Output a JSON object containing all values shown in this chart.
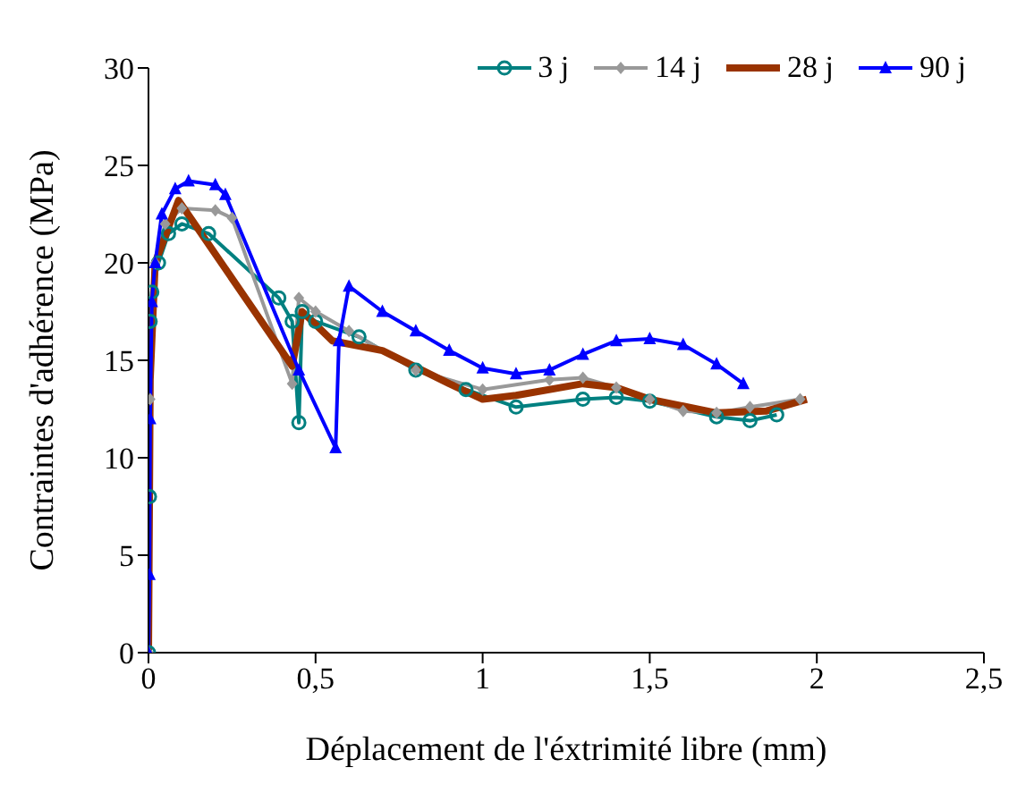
{
  "chart_data": {
    "type": "line",
    "xlabel": "Déplacement de l'éxtrimité libre (mm)",
    "ylabel": "Contraintes d'adhérence (MPa)",
    "xlim": [
      0,
      2.5
    ],
    "ylim": [
      0,
      30
    ],
    "xticks": [
      0,
      {
        "value": 0.5,
        "label": "0,5"
      },
      1,
      {
        "value": 1.5,
        "label": "1,5"
      },
      2,
      {
        "value": 2.5,
        "label": "2,5"
      }
    ],
    "yticks": [
      0,
      5,
      10,
      15,
      20,
      25,
      30
    ],
    "legend": "top right",
    "line_style": "solid",
    "series": [
      {
        "name": "3 j",
        "color": "#008080",
        "marker": "circle",
        "x": [
          0,
          0.003,
          0.005,
          0.01,
          0.03,
          0.06,
          0.1,
          0.18,
          0.39,
          0.43,
          0.45,
          0.46,
          0.5,
          0.63,
          0.8,
          0.95,
          1.1,
          1.3,
          1.4,
          1.5,
          1.7,
          1.8,
          1.88
        ],
        "values": [
          0,
          8,
          17,
          18.5,
          20,
          21.5,
          22,
          21.5,
          18.2,
          17,
          11.8,
          17.5,
          17,
          16.2,
          14.5,
          13.5,
          12.6,
          13,
          13.1,
          12.9,
          12.1,
          11.9,
          12.2
        ]
      },
      {
        "name": "14 j",
        "color": "#999999",
        "marker": "diamond",
        "x": [
          0,
          0.005,
          0.02,
          0.05,
          0.1,
          0.2,
          0.25,
          0.43,
          0.45,
          0.5,
          0.6,
          0.8,
          1,
          1.2,
          1.3,
          1.4,
          1.5,
          1.6,
          1.7,
          1.8,
          1.95
        ],
        "values": [
          0,
          13,
          20,
          22,
          22.8,
          22.7,
          22.3,
          13.8,
          18.2,
          17.5,
          16.5,
          14.5,
          13.5,
          14,
          14.1,
          13.6,
          13,
          12.4,
          12.3,
          12.6,
          13
        ]
      },
      {
        "name": "28 j",
        "color": "#993300",
        "marker": "none",
        "x": [
          0,
          0.005,
          0.02,
          0.09,
          0.43,
          0.46,
          0.55,
          0.7,
          0.9,
          1,
          1.1,
          1.3,
          1.4,
          1.5,
          1.7,
          1.85,
          1.97
        ],
        "values": [
          0,
          14,
          20,
          23.2,
          14.7,
          17.5,
          16,
          15.5,
          13.8,
          13,
          13.2,
          13.8,
          13.6,
          13,
          12.3,
          12.4,
          13
        ]
      },
      {
        "name": "90 j",
        "color": "#0000ff",
        "marker": "triangle",
        "x": [
          0,
          0.003,
          0.005,
          0.01,
          0.02,
          0.04,
          0.08,
          0.12,
          0.2,
          0.23,
          0.45,
          0.56,
          0.57,
          0.6,
          0.7,
          0.8,
          0.9,
          1,
          1.1,
          1.2,
          1.3,
          1.4,
          1.5,
          1.6,
          1.7,
          1.78
        ],
        "values": [
          0,
          4,
          12,
          18,
          20,
          22.5,
          23.8,
          24.2,
          24,
          23.5,
          14.5,
          10.5,
          16,
          18.8,
          17.5,
          16.5,
          15.5,
          14.6,
          14.3,
          14.5,
          15.3,
          16,
          16.1,
          15.8,
          14.8,
          13.8
        ]
      }
    ]
  }
}
